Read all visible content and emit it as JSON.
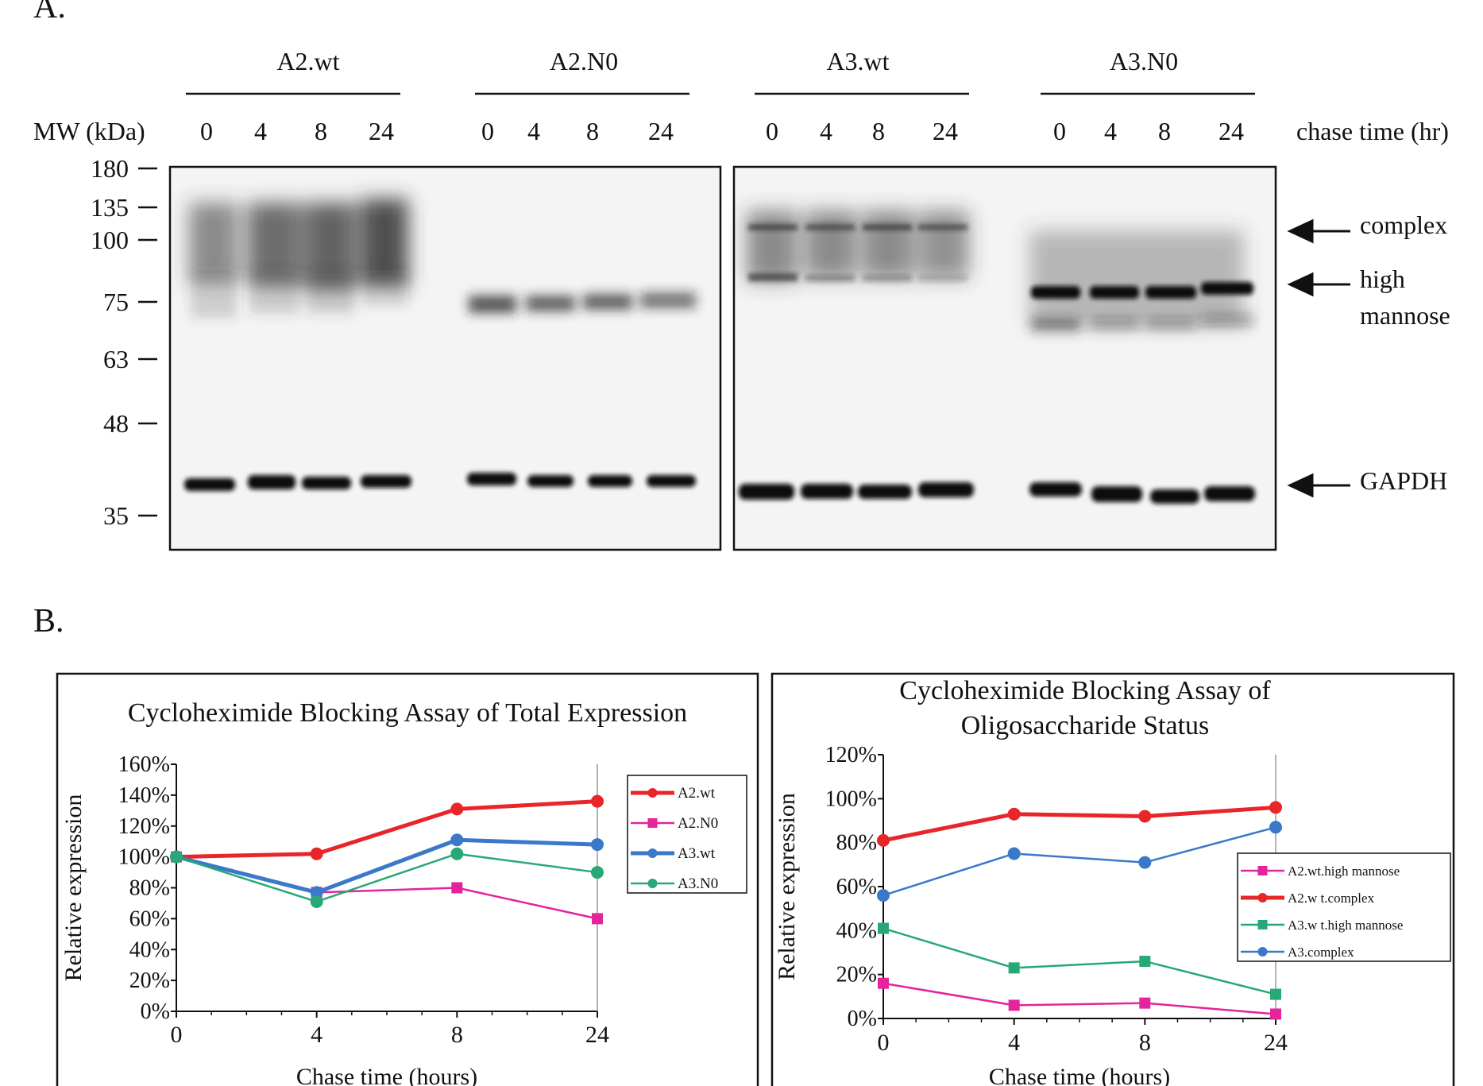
{
  "panel_a": {
    "label": "A.",
    "groups": [
      "A2.wt",
      "A2.N0",
      "A3.wt",
      "A3.N0"
    ],
    "mw_header": "MW (kDa)",
    "lane_labels": [
      "0",
      "4",
      "8",
      "24"
    ],
    "chase_label": "chase time (hr)",
    "mw_markers": [
      "180",
      "135",
      "100",
      "75",
      "63",
      "48",
      "35"
    ],
    "annotations": [
      "complex",
      "high",
      "mannose",
      "GAPDH"
    ]
  },
  "panel_b": {
    "label": "B."
  },
  "chart_data": [
    {
      "type": "line",
      "title": "Cycloheximide Blocking Assay of Total Expression",
      "xlabel": "Chase time (hours)",
      "ylabel": "Relative expression",
      "categories": [
        "0",
        "4",
        "8",
        "24"
      ],
      "ylim": [
        0,
        160
      ],
      "yticks": [
        "0%",
        "20%",
        "40%",
        "60%",
        "80%",
        "100%",
        "120%",
        "140%",
        "160%"
      ],
      "legend_position": "right",
      "series": [
        {
          "name": "A2.wt",
          "values": [
            100,
            102,
            131,
            136
          ],
          "color": "#e8262a",
          "marker": "circle",
          "width": 5
        },
        {
          "name": "A2.N0",
          "values": [
            100,
            77,
            80,
            60
          ],
          "color": "#e3249b",
          "marker": "square",
          "width": 2.5
        },
        {
          "name": "A3.wt",
          "values": [
            100,
            77,
            111,
            108
          ],
          "color": "#3a78c9",
          "marker": "circle",
          "width": 5
        },
        {
          "name": "A3.N0",
          "values": [
            100,
            71,
            102,
            90
          ],
          "color": "#28a876",
          "marker": "circle",
          "width": 2.5
        }
      ]
    },
    {
      "type": "line",
      "title": "Cycloheximide Blocking Assay of Oligosaccharide Status",
      "title_lines": [
        "Cycloheximide Blocking Assay of",
        "Oligosaccharide Status"
      ],
      "xlabel": "Chase time (hours)",
      "ylabel": "Relative expression",
      "categories": [
        "0",
        "4",
        "8",
        "24"
      ],
      "ylim": [
        0,
        120
      ],
      "yticks": [
        "0%",
        "20%",
        "40%",
        "60%",
        "80%",
        "100%",
        "120%"
      ],
      "legend_position": "right",
      "series": [
        {
          "name": "A2.wt.high mannose",
          "values": [
            16,
            6,
            7,
            2
          ],
          "color": "#e3249b",
          "marker": "square",
          "width": 2.5
        },
        {
          "name": "A2.w t.complex",
          "values": [
            81,
            93,
            92,
            96
          ],
          "color": "#e8262a",
          "marker": "circle",
          "width": 5
        },
        {
          "name": "A3.w t.high mannose",
          "values": [
            41,
            23,
            26,
            11
          ],
          "color": "#28a876",
          "marker": "square",
          "width": 2.5
        },
        {
          "name": "A3.complex",
          "values": [
            56,
            75,
            71,
            87
          ],
          "color": "#3a78c9",
          "marker": "circle",
          "width": 2.5
        }
      ]
    }
  ]
}
